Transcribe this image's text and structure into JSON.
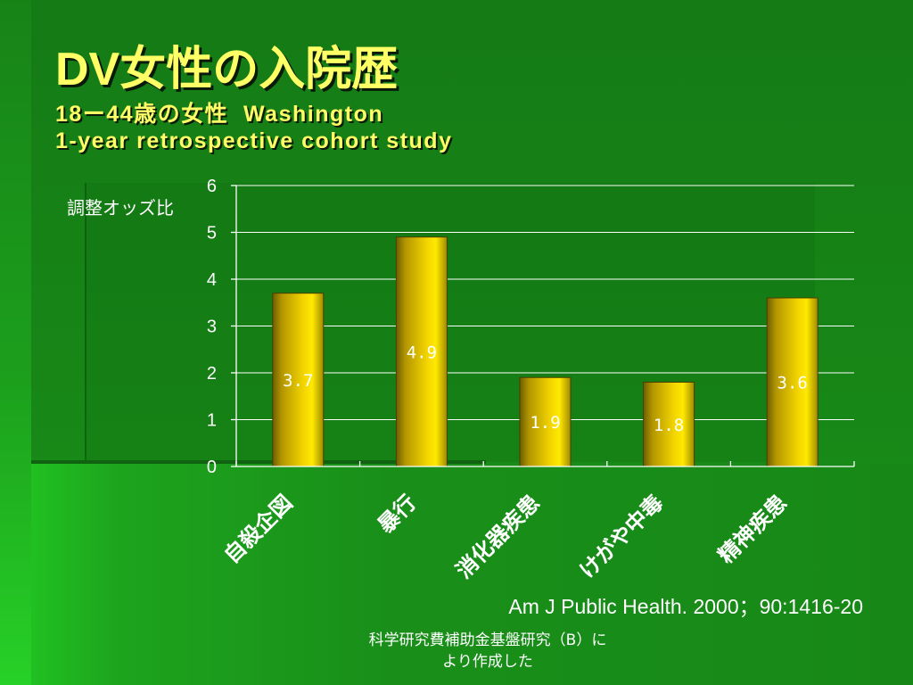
{
  "slide": {
    "title": "DV女性の入院歴",
    "subtitle": [
      "18ー44歳の女性  Washington",
      "1-year retrospective cohort study"
    ],
    "citation": "Am J Public Health. 2000；90:1416-20",
    "footer": [
      "科学研究費補助金基盤研究（B）に",
      "より作成した"
    ]
  },
  "colors": {
    "background": "#188a18",
    "title": "#ffff66",
    "text": "#ffffff",
    "grid": "#ffffff",
    "bar_light": "#ffe900",
    "bar_dark": "#6e5e00"
  },
  "chart_data": {
    "type": "bar",
    "categories": [
      "自殺企図",
      "暴行",
      "消化器疾患",
      "けがや中毒",
      "精神疾患"
    ],
    "values": [
      3.7,
      4.9,
      1.9,
      1.8,
      3.6
    ],
    "ylabel": "調整オッズ比",
    "ylim": [
      0,
      6
    ],
    "yticks": [
      0,
      1,
      2,
      3,
      4,
      5,
      6
    ],
    "grid": true
  }
}
